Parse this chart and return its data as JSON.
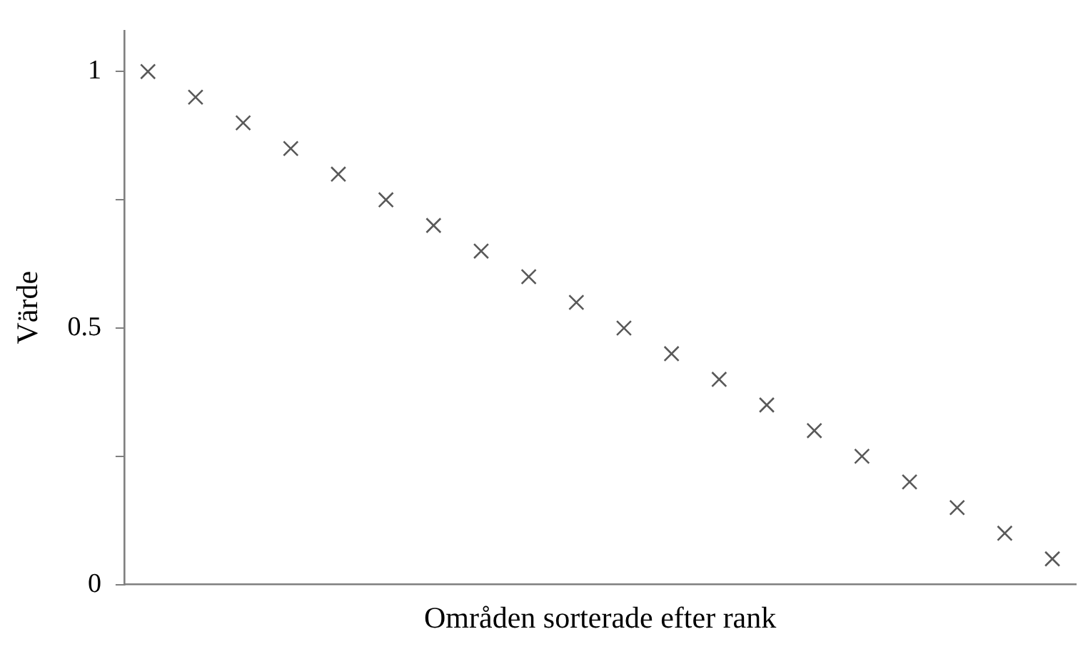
{
  "chart_data": {
    "type": "scatter",
    "xlabel": "Områden sorterade efter rank",
    "ylabel": "Värde",
    "categories": [
      null,
      null,
      null,
      null,
      null,
      null,
      null,
      null,
      null,
      null,
      null,
      null,
      null,
      null,
      null,
      null,
      null,
      null,
      null,
      null
    ],
    "series": [
      {
        "color": "#595959",
        "values": [
          1,
          0.95,
          0.9,
          0.85,
          0.8,
          0.75,
          0.7,
          0.65,
          0.6,
          0.55,
          0.5,
          0.45,
          0.4,
          0.35,
          0.3,
          0.25,
          0.2,
          0.15,
          0.1,
          0.05
        ]
      }
    ],
    "ylim": [
      0,
      1.08
    ],
    "yticks": [
      0,
      {
        "value": 0.25,
        "label": null
      },
      {
        "value": 0.5,
        "label": "0.5"
      },
      {
        "value": 0.75,
        "label": null
      },
      1
    ],
    "grid": false,
    "legend": false,
    "marker": "cross",
    "tick_labels": "y"
  }
}
